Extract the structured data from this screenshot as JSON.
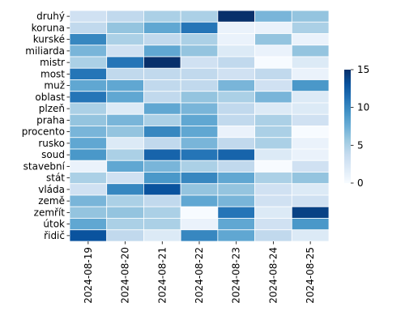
{
  "chart_data": {
    "type": "heatmap",
    "title": "",
    "xlabel": "",
    "ylabel": "",
    "columns": [
      "2024-08-19",
      "2024-08-20",
      "2024-08-21",
      "2024-08-22",
      "2024-08-23",
      "2024-08-24",
      "2024-08-25"
    ],
    "rows": [
      "druhý",
      "koruna",
      "kurské",
      "miliarda",
      "mistr",
      "most",
      "muž",
      "oblast",
      "plzeň",
      "praha",
      "procento",
      "rusko",
      "soud",
      "stavební",
      "stát",
      "vláda",
      "země",
      "zemřít",
      "útok",
      "řidič"
    ],
    "values": [
      [
        3,
        4,
        5,
        5,
        15,
        7,
        6
      ],
      [
        4,
        6,
        8,
        11,
        1,
        1,
        5
      ],
      [
        10,
        5,
        4,
        5,
        1,
        6,
        1
      ],
      [
        7,
        3,
        8,
        6,
        2,
        1,
        6
      ],
      [
        5,
        11,
        15,
        3,
        4,
        0,
        2
      ],
      [
        11,
        4,
        4,
        4,
        3,
        4,
        1
      ],
      [
        8,
        8,
        4,
        4,
        7,
        3,
        9
      ],
      [
        11,
        8,
        4,
        6,
        5,
        7,
        2
      ],
      [
        5,
        2,
        8,
        7,
        4,
        2,
        2
      ],
      [
        6,
        7,
        5,
        8,
        4,
        5,
        3
      ],
      [
        7,
        6,
        10,
        8,
        1,
        5,
        0
      ],
      [
        8,
        2,
        4,
        7,
        4,
        5,
        1
      ],
      [
        9,
        5,
        12,
        11,
        12,
        2,
        1
      ],
      [
        1,
        8,
        7,
        5,
        4,
        0,
        3
      ],
      [
        5,
        3,
        9,
        10,
        8,
        5,
        6
      ],
      [
        3,
        10,
        13,
        6,
        6,
        3,
        2
      ],
      [
        7,
        5,
        4,
        8,
        7,
        3,
        3
      ],
      [
        6,
        6,
        5,
        0,
        11,
        2,
        14
      ],
      [
        8,
        5,
        5,
        1,
        8,
        3,
        9
      ],
      [
        13,
        4,
        2,
        10,
        8,
        4,
        2
      ]
    ],
    "colorbar": {
      "min": 0,
      "max": 15,
      "ticks": [
        0,
        5,
        10,
        15
      ]
    },
    "colormap": "Blues",
    "cell_border_color": "#ffffff",
    "grid": false
  }
}
